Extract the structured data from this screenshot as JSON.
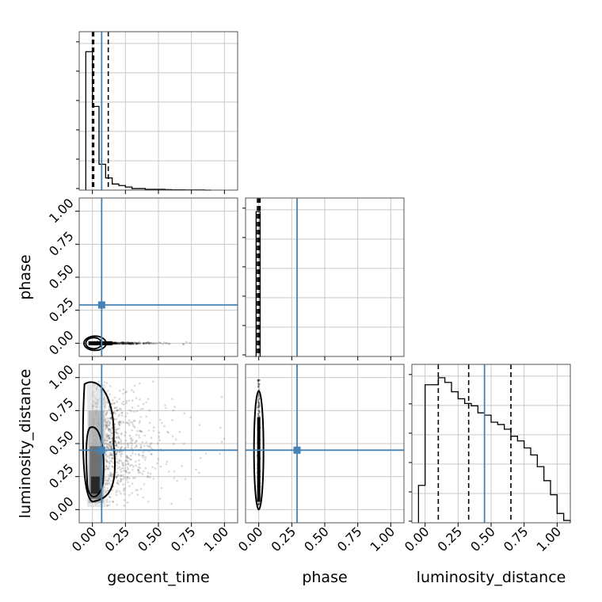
{
  "chart_data": {
    "type": "corner",
    "parameters": [
      "geocent_time",
      "phase",
      "luminosity_distance"
    ],
    "tick_labels": [
      "0.00",
      "0.25",
      "0.50",
      "0.75",
      "1.00"
    ],
    "axis_range": [
      -0.1,
      1.1
    ],
    "grid": true,
    "colors": {
      "truth": "#4682b4",
      "hist": "#000000",
      "frame": "#555555",
      "grid": "#c8c8c8"
    },
    "truths": {
      "geocent_time": 0.07,
      "phase": 0.29,
      "luminosity_distance": 0.45
    },
    "quantiles": {
      "geocent_time": [
        0.0,
        0.01,
        0.12
      ],
      "phase": [
        -0.01,
        0.0,
        0.01
      ],
      "luminosity_distance": [
        0.1,
        0.33,
        0.65
      ]
    },
    "histograms": {
      "geocent_time": {
        "bin_width": 0.05,
        "x0": -0.05,
        "counts": [
          0.91,
          0.55,
          0.17,
          0.08,
          0.04,
          0.03,
          0.02,
          0.01,
          0.01,
          0.005,
          0.005,
          0.005,
          0.003,
          0.002,
          0.002,
          0.001,
          0.001,
          0.001,
          0.0
        ],
        "ymax": 1.0
      },
      "phase": {
        "bin_width": 0.01,
        "x0": -0.03,
        "counts": [
          0.0,
          1.0,
          1.0,
          1.0,
          0.0
        ],
        "ymax": 1.05
      },
      "luminosity_distance": {
        "bin_width": 0.05,
        "x0": -0.05,
        "counts": [
          0.16,
          0.59,
          0.59,
          0.62,
          0.6,
          0.56,
          0.53,
          0.51,
          0.5,
          0.47,
          0.46,
          0.43,
          0.42,
          0.4,
          0.37,
          0.35,
          0.32,
          0.29,
          0.24,
          0.18,
          0.12,
          0.04,
          0.01
        ],
        "ymax": 0.65
      }
    },
    "scatter_seed": 7
  }
}
